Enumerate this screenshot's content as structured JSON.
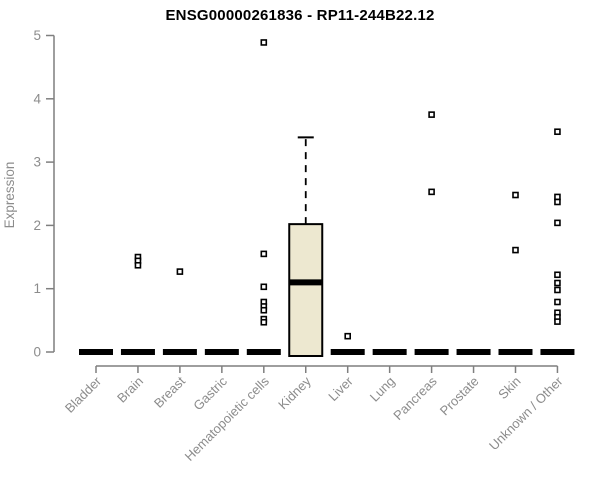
{
  "chart_data": {
    "type": "box",
    "title": "ENSG00000261836 - RP11-244B22.12",
    "xlabel": "",
    "ylabel": "Expression",
    "ylim": [
      0,
      5
    ],
    "yticks": [
      "0",
      "1",
      "2",
      "3",
      "4",
      "5"
    ],
    "grid": false,
    "legend": null,
    "categories": [
      "Bladder",
      "Brain",
      "Breast",
      "Gastric",
      "Hematopoietic cells",
      "Kidney",
      "Liver",
      "Lung",
      "Pancreas",
      "Prostate",
      "Skin",
      "Unknown / Other"
    ],
    "boxes": [
      {
        "category": "Bladder",
        "q1": 0,
        "median": 0,
        "q3": 0,
        "whisker_low": 0,
        "whisker_high": 0,
        "outliers": []
      },
      {
        "category": "Brain",
        "q1": 0,
        "median": 0,
        "q3": 0,
        "whisker_low": 0,
        "whisker_high": 0,
        "outliers": [
          1.5,
          1.44,
          1.37
        ]
      },
      {
        "category": "Breast",
        "q1": 0,
        "median": 0,
        "q3": 0,
        "whisker_low": 0,
        "whisker_high": 0,
        "outliers": [
          1.27
        ]
      },
      {
        "category": "Gastric",
        "q1": 0,
        "median": 0,
        "q3": 0,
        "whisker_low": 0,
        "whisker_high": 0,
        "outliers": []
      },
      {
        "category": "Hematopoietic cells",
        "q1": 0,
        "median": 0,
        "q3": 0,
        "whisker_low": 0,
        "whisker_high": 0,
        "outliers": [
          4.89,
          1.55,
          1.03,
          0.79,
          0.72,
          0.66,
          0.52,
          0.47
        ]
      },
      {
        "category": "Kidney",
        "q1": 0,
        "median": 1.1,
        "q3": 2.02,
        "whisker_low": 0,
        "whisker_high": 3.39,
        "outliers": []
      },
      {
        "category": "Liver",
        "q1": 0,
        "median": 0,
        "q3": 0,
        "whisker_low": 0,
        "whisker_high": 0,
        "outliers": [
          0.25
        ]
      },
      {
        "category": "Lung",
        "q1": 0,
        "median": 0,
        "q3": 0,
        "whisker_low": 0,
        "whisker_high": 0,
        "outliers": []
      },
      {
        "category": "Pancreas",
        "q1": 0,
        "median": 0,
        "q3": 0,
        "whisker_low": 0,
        "whisker_high": 0,
        "outliers": [
          3.75,
          2.53
        ]
      },
      {
        "category": "Prostate",
        "q1": 0,
        "median": 0,
        "q3": 0,
        "whisker_low": 0,
        "whisker_high": 0,
        "outliers": []
      },
      {
        "category": "Skin",
        "q1": 0,
        "median": 0,
        "q3": 0,
        "whisker_low": 0,
        "whisker_high": 0,
        "outliers": [
          2.48,
          1.61
        ]
      },
      {
        "category": "Unknown / Other",
        "q1": 0,
        "median": 0,
        "q3": 0,
        "whisker_low": 0,
        "whisker_high": 0,
        "outliers": [
          3.48,
          2.45,
          2.37,
          2.04,
          1.22,
          1.09,
          0.98,
          0.79,
          0.62,
          0.55,
          0.48
        ]
      }
    ],
    "style": {
      "box_fill": "#EDE8D0",
      "box_border": "#000000",
      "median_color": "#000000",
      "whisker_style": "dashed",
      "outlier_marker": "open-square",
      "axis_color": "#7F7F7F",
      "tick_label_color": "#8C8C8C",
      "title_color": "#000000",
      "background": "#FFFFFF"
    }
  }
}
